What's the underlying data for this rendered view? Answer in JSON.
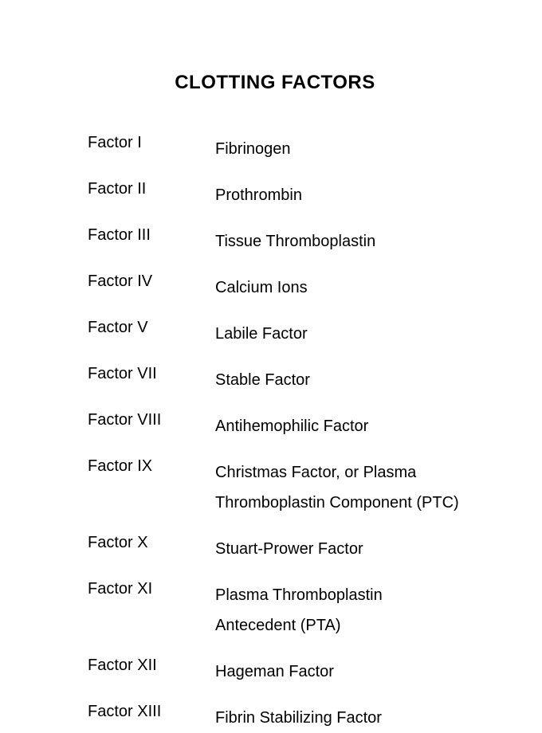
{
  "title": "CLOTTING FACTORS",
  "factors": [
    {
      "label": "Factor I",
      "name": "Fibrinogen"
    },
    {
      "label": "Factor II",
      "name": "Prothrombin"
    },
    {
      "label": "Factor III",
      "name": "Tissue Thromboplastin"
    },
    {
      "label": "Factor IV",
      "name": "Calcium Ions"
    },
    {
      "label": "Factor V",
      "name": "Labile Factor"
    },
    {
      "label": "Factor VII",
      "name": "Stable Factor"
    },
    {
      "label": "Factor VIII",
      "name": "Antihemophilic Factor"
    },
    {
      "label": "Factor IX",
      "name": "Christmas Factor, or Plasma Thromboplastin Component (PTC)"
    },
    {
      "label": "Factor X",
      "name": "Stuart-Prower Factor"
    },
    {
      "label": "Factor XI",
      "name": "Plasma Thromboplastin Antecedent (PTA)"
    },
    {
      "label": "Factor XII",
      "name": "Hageman Factor"
    },
    {
      "label": "Factor XIII",
      "name": "Fibrin Stabilizing Factor"
    }
  ],
  "styling": {
    "background_color": "#ffffff",
    "text_color": "#000000",
    "title_fontsize": 24,
    "title_fontweight": "bold",
    "body_fontsize": 20,
    "font_family": "Arial",
    "label_column_width": 160,
    "row_spacing": 20,
    "line_height": 1.9
  }
}
